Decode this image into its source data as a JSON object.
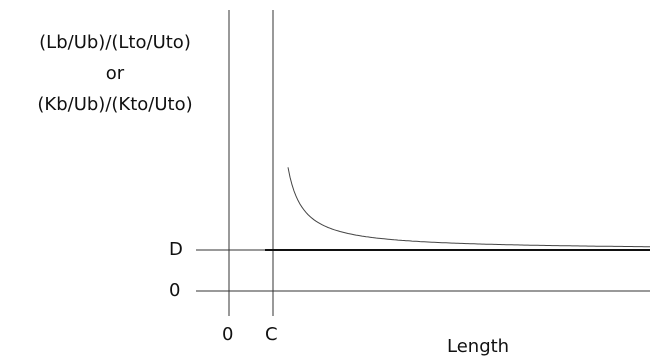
{
  "y_axis_label": {
    "line1": "(Lb/Ub)/(Lto/Uto)",
    "line2": "or",
    "line3": "(Kb/Ub)/(Kto/Uto)"
  },
  "y_ticks": {
    "d_label": "D",
    "zero_label": "0"
  },
  "x_ticks": {
    "zero_label": "0",
    "c_label": "C"
  },
  "x_axis_label": "Length",
  "colors": {
    "curve": "#444444",
    "axis": "#333333",
    "d_line": "#111111"
  }
}
